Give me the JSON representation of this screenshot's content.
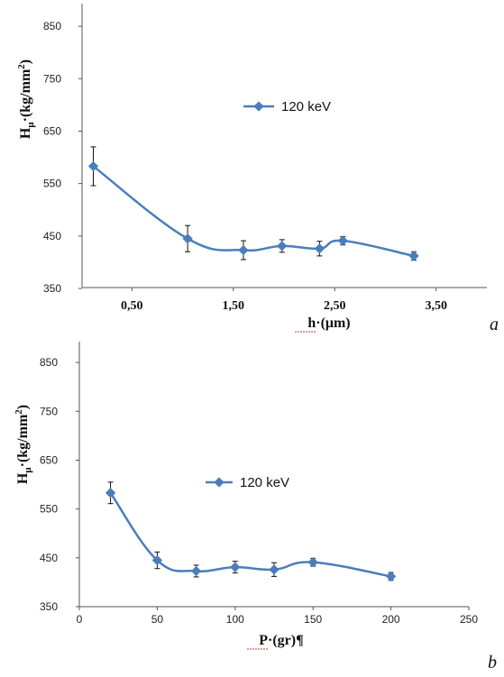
{
  "chart_data": [
    {
      "type": "line",
      "panel_label": "a",
      "xlabel": "h·(μm)",
      "ylabel_main": "H",
      "ylabel_sub": "μ",
      "ylabel_rest": "·(kg/mm",
      "ylabel_sup": "2",
      "ylabel_end": ")",
      "ylim": [
        350,
        900
      ],
      "yticks": [
        "850",
        "750",
        "650",
        "550",
        "450",
        "350"
      ],
      "ytick_values": [
        850,
        750,
        650,
        550,
        450,
        350
      ],
      "xlim": [
        0,
        4.0
      ],
      "xticks": [
        "0,50",
        "1,50",
        "2,50",
        "3,50"
      ],
      "xtick_values": [
        0.5,
        1.5,
        2.5,
        3.5
      ],
      "grid": false,
      "legend_position": "upper-center",
      "series": [
        {
          "name": "120 keV",
          "color": "#4a7ebb",
          "x": [
            0.12,
            1.05,
            1.6,
            1.98,
            2.35,
            2.58,
            3.28
          ],
          "y": [
            583,
            445,
            423,
            431,
            426,
            441,
            412
          ],
          "err": [
            37,
            25,
            18,
            12,
            14,
            8,
            8
          ]
        }
      ]
    },
    {
      "type": "line",
      "panel_label": "b",
      "xlabel": "P·(gr)¶",
      "ylabel_main": "H",
      "ylabel_sub": "μ",
      "ylabel_rest": "·(kg/mm",
      "ylabel_sup": "2",
      "ylabel_end": ")",
      "ylim": [
        350,
        900
      ],
      "yticks": [
        "850",
        "750",
        "650",
        "550",
        "450",
        "350"
      ],
      "ytick_values": [
        850,
        750,
        650,
        550,
        450,
        350
      ],
      "xlim": [
        0,
        250
      ],
      "xticks": [
        "0",
        "50",
        "100",
        "150",
        "200",
        "250"
      ],
      "xtick_values": [
        0,
        50,
        100,
        150,
        200,
        250
      ],
      "grid": false,
      "legend_position": "upper-center",
      "series": [
        {
          "name": "120 keV",
          "color": "#4a7ebb",
          "x": [
            20,
            50,
            75,
            100,
            125,
            150,
            200
          ],
          "y": [
            583,
            445,
            423,
            431,
            426,
            441,
            412
          ],
          "err": [
            22,
            17,
            12,
            12,
            14,
            8,
            8
          ]
        }
      ]
    }
  ]
}
